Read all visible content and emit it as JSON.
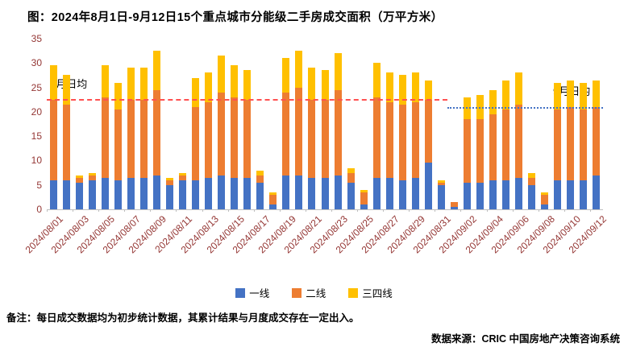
{
  "title": "图：2024年8月1日-9月12日15个重点城市分能级二手房成交面积（万平方米）",
  "footnote": {
    "label": "备注：",
    "text": "每日成交数据均为初步统计数据，其累计结果与月度成交存在一定出入。"
  },
  "source": "数据来源：CRIC 中国房地产决策咨询系统",
  "chart_data": {
    "type": "bar",
    "stacked": true,
    "title": "图：2024年8月1日-9月12日15个重点城市分能级二手房成交面积（万平方米）",
    "xlabel": "",
    "ylabel": "",
    "ylim": [
      0,
      35
    ],
    "yticks": [
      0,
      5,
      10,
      15,
      20,
      25,
      30,
      35
    ],
    "x_tick_step": 2,
    "grid": false,
    "legend_position": "bottom",
    "colors": {
      "axis_labels": "#943634",
      "axis_line": "#bfbfbf"
    },
    "categories": [
      "2024/08/01",
      "2024/08/02",
      "2024/08/03",
      "2024/08/04",
      "2024/08/05",
      "2024/08/06",
      "2024/08/07",
      "2024/08/08",
      "2024/08/09",
      "2024/08/10",
      "2024/08/11",
      "2024/08/12",
      "2024/08/13",
      "2024/08/14",
      "2024/08/15",
      "2024/08/16",
      "2024/08/17",
      "2024/08/18",
      "2024/08/19",
      "2024/08/20",
      "2024/08/21",
      "2024/08/22",
      "2024/08/23",
      "2024/08/24",
      "2024/08/25",
      "2024/08/26",
      "2024/08/27",
      "2024/08/28",
      "2024/08/29",
      "2024/08/30",
      "2024/08/31",
      "2024/09/01",
      "2024/09/02",
      "2024/09/03",
      "2024/09/04",
      "2024/09/05",
      "2024/09/06",
      "2024/09/07",
      "2024/09/08",
      "2024/09/09",
      "2024/09/10",
      "2024/09/11",
      "2024/09/12"
    ],
    "series": [
      {
        "name": "一线",
        "color": "#4472C4",
        "values": [
          6,
          6,
          5.5,
          6,
          6.5,
          6,
          6.5,
          6.5,
          7,
          5,
          6,
          6,
          6.5,
          7,
          6.5,
          6.5,
          5.5,
          1,
          7,
          7,
          6.5,
          6.5,
          7,
          5.5,
          1,
          6.5,
          6.5,
          6,
          6.5,
          9.5,
          5,
          0.5,
          5.5,
          5.5,
          6,
          6,
          6.5,
          5,
          1,
          6,
          6,
          6,
          7
        ]
      },
      {
        "name": "二线",
        "color": "#ED7D31",
        "values": [
          16.5,
          15.5,
          1,
          1,
          16.5,
          14.5,
          16,
          16,
          17.5,
          1,
          1,
          15,
          15.5,
          17,
          16.5,
          16,
          1.5,
          2,
          17,
          18,
          16,
          16,
          17.5,
          2,
          2.5,
          16.5,
          15.5,
          15.5,
          15.5,
          13,
          0.5,
          1,
          13,
          13,
          13.5,
          14.5,
          15,
          1.5,
          2,
          14.5,
          15,
          14.5,
          14
        ]
      },
      {
        "name": "三四线",
        "color": "#FFC000",
        "values": [
          7,
          6,
          0.5,
          0.5,
          6.5,
          5.5,
          6.5,
          6.5,
          8,
          0.5,
          0.5,
          6,
          6,
          7.5,
          6.5,
          6,
          1,
          0.5,
          7,
          7.5,
          6.5,
          6,
          7.5,
          1,
          0.5,
          7,
          6,
          6,
          6,
          4,
          0.5,
          0,
          4.5,
          5,
          5,
          6,
          6.5,
          1,
          0.5,
          5.5,
          5.5,
          5.5,
          5.5
        ]
      }
    ],
    "reference_lines": [
      {
        "label": "8月日均",
        "value": 22.7,
        "color": "#FF5050",
        "dash": "dashed",
        "start_index": 0,
        "end_index": 31
      },
      {
        "label": "9月日均",
        "value": 21.0,
        "color": "#4472C4",
        "dash": "dotted",
        "start_index": 31,
        "end_index": 43
      }
    ]
  }
}
